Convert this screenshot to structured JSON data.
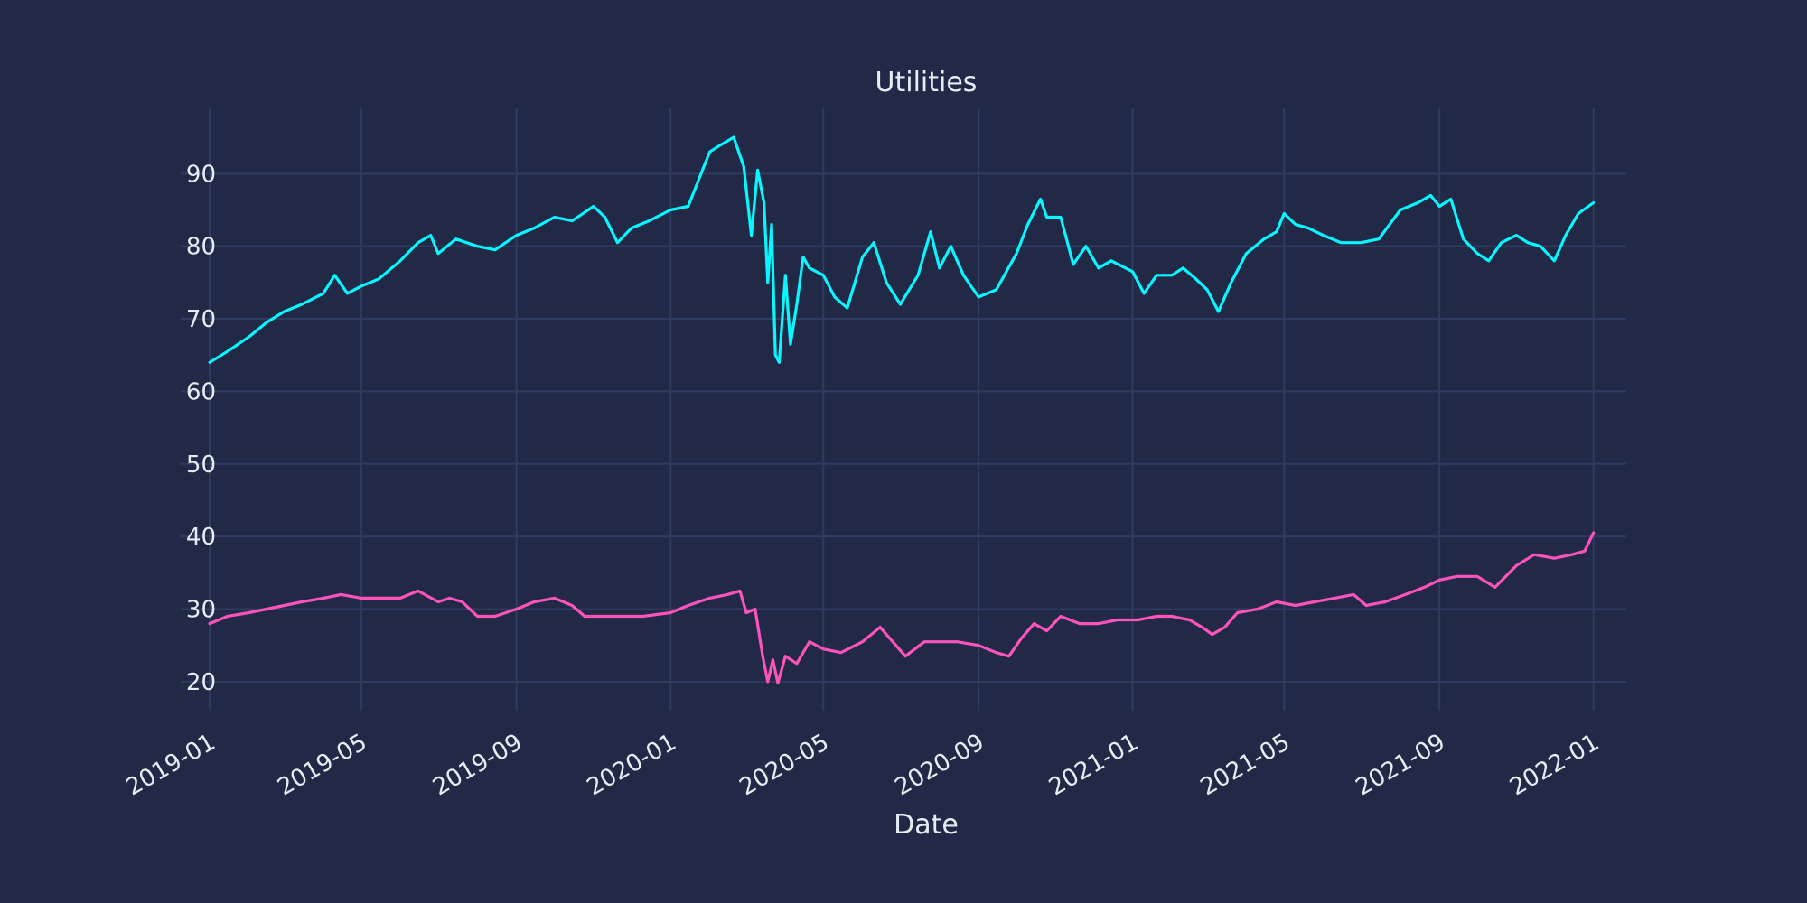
{
  "chart_data": {
    "type": "line",
    "title": "Utilities",
    "xlabel": "Date",
    "ylabel": "",
    "ylim": [
      16,
      99
    ],
    "xlim": [
      "2018-12-09",
      "2022-01-27"
    ],
    "grid": true,
    "y_ticks": [
      20,
      30,
      40,
      50,
      60,
      70,
      80,
      90
    ],
    "x_ticks": [
      "2019-01",
      "2019-05",
      "2019-09",
      "2020-01",
      "2020-05",
      "2020-09",
      "2021-01",
      "2021-05",
      "2021-09",
      "2022-01"
    ],
    "series": [
      {
        "color": "#08f7fe",
        "points": [
          [
            "2019-01-01",
            64
          ],
          [
            "2019-01-15",
            65.5
          ],
          [
            "2019-02-01",
            67.5
          ],
          [
            "2019-02-15",
            69.5
          ],
          [
            "2019-03-01",
            71
          ],
          [
            "2019-03-15",
            72
          ],
          [
            "2019-04-01",
            73.5
          ],
          [
            "2019-04-10",
            76
          ],
          [
            "2019-04-20",
            73.5
          ],
          [
            "2019-05-01",
            74.5
          ],
          [
            "2019-05-15",
            75.5
          ],
          [
            "2019-06-01",
            78
          ],
          [
            "2019-06-15",
            80.5
          ],
          [
            "2019-06-25",
            81.5
          ],
          [
            "2019-07-01",
            79
          ],
          [
            "2019-07-15",
            81
          ],
          [
            "2019-08-01",
            80
          ],
          [
            "2019-08-15",
            79.5
          ],
          [
            "2019-09-01",
            81.5
          ],
          [
            "2019-09-15",
            82.5
          ],
          [
            "2019-10-01",
            84
          ],
          [
            "2019-10-15",
            83.5
          ],
          [
            "2019-11-01",
            85.5
          ],
          [
            "2019-11-10",
            84
          ],
          [
            "2019-11-20",
            80.5
          ],
          [
            "2019-12-01",
            82.5
          ],
          [
            "2019-12-15",
            83.5
          ],
          [
            "2020-01-01",
            85
          ],
          [
            "2020-01-15",
            85.5
          ],
          [
            "2020-02-01",
            93
          ],
          [
            "2020-02-10",
            94
          ],
          [
            "2020-02-20",
            95
          ],
          [
            "2020-02-28",
            91
          ],
          [
            "2020-03-05",
            81.5
          ],
          [
            "2020-03-10",
            90.5
          ],
          [
            "2020-03-15",
            86
          ],
          [
            "2020-03-18",
            75
          ],
          [
            "2020-03-21",
            83
          ],
          [
            "2020-03-24",
            65
          ],
          [
            "2020-03-27",
            64
          ],
          [
            "2020-04-01",
            76
          ],
          [
            "2020-04-05",
            66.5
          ],
          [
            "2020-04-10",
            72
          ],
          [
            "2020-04-15",
            78.5
          ],
          [
            "2020-04-20",
            77
          ],
          [
            "2020-05-01",
            76
          ],
          [
            "2020-05-10",
            73
          ],
          [
            "2020-05-20",
            71.5
          ],
          [
            "2020-06-01",
            78.5
          ],
          [
            "2020-06-10",
            80.5
          ],
          [
            "2020-06-20",
            75
          ],
          [
            "2020-07-01",
            72
          ],
          [
            "2020-07-15",
            76
          ],
          [
            "2020-07-25",
            82
          ],
          [
            "2020-08-01",
            77
          ],
          [
            "2020-08-10",
            80
          ],
          [
            "2020-08-20",
            76
          ],
          [
            "2020-09-01",
            73
          ],
          [
            "2020-09-15",
            74
          ],
          [
            "2020-10-01",
            79
          ],
          [
            "2020-10-10",
            83
          ],
          [
            "2020-10-20",
            86.5
          ],
          [
            "2020-10-25",
            84
          ],
          [
            "2020-11-05",
            84
          ],
          [
            "2020-11-15",
            77.5
          ],
          [
            "2020-11-25",
            80
          ],
          [
            "2020-12-05",
            77
          ],
          [
            "2020-12-15",
            78
          ],
          [
            "2021-01-01",
            76.5
          ],
          [
            "2021-01-10",
            73.5
          ],
          [
            "2021-01-20",
            76
          ],
          [
            "2021-02-01",
            76
          ],
          [
            "2021-02-10",
            77
          ],
          [
            "2021-02-20",
            75.5
          ],
          [
            "2021-03-01",
            74
          ],
          [
            "2021-03-10",
            71
          ],
          [
            "2021-03-20",
            75
          ],
          [
            "2021-04-01",
            79
          ],
          [
            "2021-04-15",
            81
          ],
          [
            "2021-04-25",
            82
          ],
          [
            "2021-05-01",
            84.5
          ],
          [
            "2021-05-10",
            83
          ],
          [
            "2021-05-20",
            82.5
          ],
          [
            "2021-06-01",
            81.5
          ],
          [
            "2021-06-15",
            80.5
          ],
          [
            "2021-07-01",
            80.5
          ],
          [
            "2021-07-15",
            81
          ],
          [
            "2021-08-01",
            85
          ],
          [
            "2021-08-15",
            86
          ],
          [
            "2021-08-25",
            87
          ],
          [
            "2021-09-01",
            85.5
          ],
          [
            "2021-09-10",
            86.5
          ],
          [
            "2021-09-20",
            81
          ],
          [
            "2021-10-01",
            79
          ],
          [
            "2021-10-10",
            78
          ],
          [
            "2021-10-20",
            80.5
          ],
          [
            "2021-11-01",
            81.5
          ],
          [
            "2021-11-10",
            80.5
          ],
          [
            "2021-11-20",
            80
          ],
          [
            "2021-12-01",
            78
          ],
          [
            "2021-12-10",
            81.5
          ],
          [
            "2021-12-20",
            84.5
          ],
          [
            "2022-01-01",
            86
          ]
        ]
      },
      {
        "color": "#fe53bb",
        "points": [
          [
            "2019-01-01",
            28
          ],
          [
            "2019-01-15",
            29
          ],
          [
            "2019-02-01",
            29.5
          ],
          [
            "2019-02-15",
            30
          ],
          [
            "2019-03-01",
            30.5
          ],
          [
            "2019-03-15",
            31
          ],
          [
            "2019-04-01",
            31.5
          ],
          [
            "2019-04-15",
            32
          ],
          [
            "2019-05-01",
            31.5
          ],
          [
            "2019-05-15",
            31.5
          ],
          [
            "2019-06-01",
            31.5
          ],
          [
            "2019-06-15",
            32.5
          ],
          [
            "2019-07-01",
            31
          ],
          [
            "2019-07-10",
            31.5
          ],
          [
            "2019-07-20",
            31
          ],
          [
            "2019-08-01",
            29
          ],
          [
            "2019-08-15",
            29
          ],
          [
            "2019-09-01",
            30
          ],
          [
            "2019-09-15",
            31
          ],
          [
            "2019-10-01",
            31.5
          ],
          [
            "2019-10-15",
            30.5
          ],
          [
            "2019-10-25",
            29
          ],
          [
            "2019-11-10",
            29
          ],
          [
            "2019-11-25",
            29
          ],
          [
            "2019-12-10",
            29
          ],
          [
            "2020-01-01",
            29.5
          ],
          [
            "2020-01-15",
            30.5
          ],
          [
            "2020-02-01",
            31.5
          ],
          [
            "2020-02-15",
            32
          ],
          [
            "2020-02-25",
            32.5
          ],
          [
            "2020-03-01",
            29.5
          ],
          [
            "2020-03-08",
            30
          ],
          [
            "2020-03-14",
            23.5
          ],
          [
            "2020-03-18",
            20
          ],
          [
            "2020-03-22",
            23
          ],
          [
            "2020-03-26",
            19.8
          ],
          [
            "2020-04-01",
            23.5
          ],
          [
            "2020-04-10",
            22.5
          ],
          [
            "2020-04-20",
            25.5
          ],
          [
            "2020-05-01",
            24.5
          ],
          [
            "2020-05-15",
            24
          ],
          [
            "2020-06-01",
            25.5
          ],
          [
            "2020-06-15",
            27.5
          ],
          [
            "2020-06-25",
            25.5
          ],
          [
            "2020-07-05",
            23.5
          ],
          [
            "2020-07-20",
            25.5
          ],
          [
            "2020-08-01",
            25.5
          ],
          [
            "2020-08-15",
            25.5
          ],
          [
            "2020-09-01",
            25
          ],
          [
            "2020-09-15",
            24
          ],
          [
            "2020-09-25",
            23.5
          ],
          [
            "2020-10-05",
            26
          ],
          [
            "2020-10-15",
            28
          ],
          [
            "2020-10-25",
            27
          ],
          [
            "2020-11-05",
            29
          ],
          [
            "2020-11-20",
            28
          ],
          [
            "2020-12-05",
            28
          ],
          [
            "2020-12-20",
            28.5
          ],
          [
            "2021-01-05",
            28.5
          ],
          [
            "2021-01-20",
            29
          ],
          [
            "2021-02-01",
            29
          ],
          [
            "2021-02-15",
            28.5
          ],
          [
            "2021-02-25",
            27.5
          ],
          [
            "2021-03-05",
            26.5
          ],
          [
            "2021-03-15",
            27.5
          ],
          [
            "2021-03-25",
            29.5
          ],
          [
            "2021-04-10",
            30
          ],
          [
            "2021-04-25",
            31
          ],
          [
            "2021-05-10",
            30.5
          ],
          [
            "2021-05-25",
            31
          ],
          [
            "2021-06-10",
            31.5
          ],
          [
            "2021-06-25",
            32
          ],
          [
            "2021-07-05",
            30.5
          ],
          [
            "2021-07-20",
            31
          ],
          [
            "2021-08-05",
            32
          ],
          [
            "2021-08-20",
            33
          ],
          [
            "2021-09-01",
            34
          ],
          [
            "2021-09-15",
            34.5
          ],
          [
            "2021-10-01",
            34.5
          ],
          [
            "2021-10-15",
            33
          ],
          [
            "2021-11-01",
            36
          ],
          [
            "2021-11-15",
            37.5
          ],
          [
            "2021-12-01",
            37
          ],
          [
            "2021-12-15",
            37.5
          ],
          [
            "2021-12-25",
            38
          ],
          [
            "2022-01-01",
            40.5
          ]
        ]
      }
    ]
  }
}
